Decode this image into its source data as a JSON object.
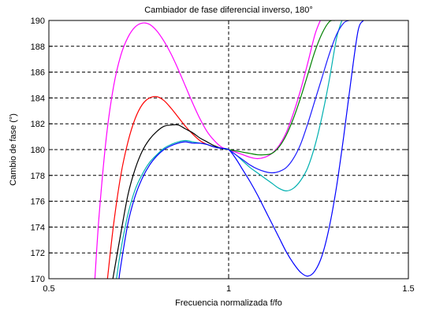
{
  "chart_data": {
    "type": "line",
    "title": "Cambiador de fase diferencial inverso, 180°",
    "xlabel": "Frecuencia normalizada f/fo",
    "ylabel": "Cambio de fase (°)",
    "xlim": [
      0.5,
      1.5
    ],
    "ylim": [
      170,
      190
    ],
    "x_ticks": [
      0.5,
      1,
      1.5
    ],
    "x_tick_labels": [
      "0.5",
      "1",
      "1.5"
    ],
    "y_ticks": [
      170,
      172,
      174,
      176,
      178,
      180,
      182,
      184,
      186,
      188,
      190
    ],
    "y_tick_labels": [
      "170",
      "172",
      "174",
      "176",
      "178",
      "180",
      "182",
      "184",
      "186",
      "188",
      "190"
    ],
    "grid": true,
    "legend": "none",
    "series": [
      {
        "color": "#ff00ff",
        "x": [
          0.628,
          0.64,
          0.66,
          0.68,
          0.7,
          0.72,
          0.74,
          0.76,
          0.78,
          0.8,
          0.82,
          0.84,
          0.86,
          0.88,
          0.9,
          0.92,
          0.94,
          0.96,
          0.98,
          1.0,
          1.02,
          1.04,
          1.06,
          1.08,
          1.1,
          1.12,
          1.14,
          1.16,
          1.18,
          1.2,
          1.22,
          1.24,
          1.255
        ],
        "y": [
          170.0,
          175.0,
          181.0,
          184.9,
          187.3,
          188.7,
          189.5,
          189.8,
          189.7,
          189.2,
          188.4,
          187.4,
          186.2,
          184.9,
          183.6,
          182.4,
          181.4,
          180.7,
          180.2,
          180.0,
          179.8,
          179.6,
          179.4,
          179.3,
          179.4,
          179.7,
          180.3,
          181.3,
          182.8,
          184.6,
          186.7,
          188.9,
          190.0
        ]
      },
      {
        "color": "#ff0000",
        "x": [
          0.663,
          0.68,
          0.7,
          0.72,
          0.74,
          0.76,
          0.78,
          0.8,
          0.82,
          0.84,
          0.86,
          0.88,
          0.9,
          0.92,
          0.94,
          0.96,
          0.98,
          1.0
        ],
        "y": [
          170.0,
          174.2,
          178.0,
          180.6,
          182.4,
          183.5,
          184.0,
          184.1,
          183.8,
          183.2,
          182.5,
          181.8,
          181.2,
          180.7,
          180.4,
          180.2,
          180.1,
          180.0
        ]
      },
      {
        "color": "#000000",
        "x": [
          0.678,
          0.7,
          0.72,
          0.74,
          0.76,
          0.78,
          0.8,
          0.82,
          0.84,
          0.86,
          0.88,
          0.9,
          0.92,
          0.94,
          0.96,
          0.98,
          1.0
        ],
        "y": [
          170.0,
          173.5,
          176.5,
          178.5,
          179.9,
          180.8,
          181.4,
          181.8,
          181.9,
          181.9,
          181.6,
          181.3,
          180.9,
          180.6,
          180.3,
          180.1,
          180.0
        ]
      },
      {
        "color": "#00b0b0",
        "x": [
          0.688,
          0.7,
          0.72,
          0.74,
          0.76,
          0.78,
          0.8,
          0.82,
          0.84,
          0.86,
          0.88,
          0.9,
          0.92,
          0.94,
          0.96,
          0.98,
          1.0,
          1.02,
          1.04,
          1.06,
          1.08,
          1.1,
          1.12,
          1.14,
          1.16,
          1.18,
          1.2,
          1.22,
          1.24,
          1.26,
          1.28,
          1.3,
          1.315
        ],
        "y": [
          170.0,
          172.2,
          175.0,
          176.9,
          178.1,
          179.0,
          179.6,
          180.1,
          180.4,
          180.6,
          180.7,
          180.6,
          180.5,
          180.4,
          180.2,
          180.1,
          180.0,
          179.6,
          179.1,
          178.6,
          178.2,
          177.8,
          177.4,
          177.0,
          176.8,
          177.0,
          177.6,
          178.6,
          180.3,
          182.6,
          185.4,
          188.6,
          190.0
        ]
      },
      {
        "color": "#0000ff",
        "x": [
          0.695,
          0.7,
          0.72,
          0.74,
          0.76,
          0.78,
          0.8,
          0.82,
          0.84,
          0.86,
          0.88,
          0.9,
          0.92,
          0.94,
          0.96,
          0.98,
          1.0,
          1.02,
          1.04,
          1.06,
          1.08,
          1.1,
          1.12,
          1.14,
          1.16,
          1.18,
          1.2,
          1.22,
          1.24,
          1.26,
          1.28,
          1.3,
          1.32,
          1.34,
          1.36,
          1.375
        ],
        "y": [
          170.0,
          171.0,
          174.3,
          176.4,
          177.8,
          178.8,
          179.5,
          180.0,
          180.3,
          180.5,
          180.6,
          180.5,
          180.5,
          180.4,
          180.2,
          180.1,
          180.0,
          179.3,
          178.4,
          177.5,
          176.5,
          175.4,
          174.3,
          173.2,
          172.1,
          171.2,
          170.5,
          170.2,
          170.6,
          171.8,
          174.0,
          177.1,
          181.0,
          185.3,
          189.2,
          190.0
        ]
      },
      {
        "color": "#008000",
        "x": [
          1.0,
          1.02,
          1.04,
          1.06,
          1.08,
          1.1,
          1.12,
          1.14,
          1.16,
          1.18,
          1.2,
          1.22,
          1.24,
          1.26,
          1.28,
          1.295
        ],
        "y": [
          180.0,
          179.9,
          179.8,
          179.7,
          179.6,
          179.6,
          179.7,
          180.2,
          181.1,
          182.4,
          184.0,
          185.8,
          187.6,
          189.0,
          189.9,
          190.0
        ]
      },
      {
        "color": "#1a1aff",
        "x": [
          1.0,
          1.02,
          1.04,
          1.06,
          1.08,
          1.1,
          1.12,
          1.14,
          1.16,
          1.18,
          1.2,
          1.22,
          1.24,
          1.26,
          1.28,
          1.3,
          1.32,
          1.335
        ],
        "y": [
          180.0,
          179.6,
          179.2,
          178.8,
          178.5,
          178.3,
          178.2,
          178.3,
          178.6,
          179.3,
          180.4,
          182.0,
          183.8,
          185.6,
          187.4,
          188.9,
          189.8,
          190.0
        ]
      }
    ]
  }
}
